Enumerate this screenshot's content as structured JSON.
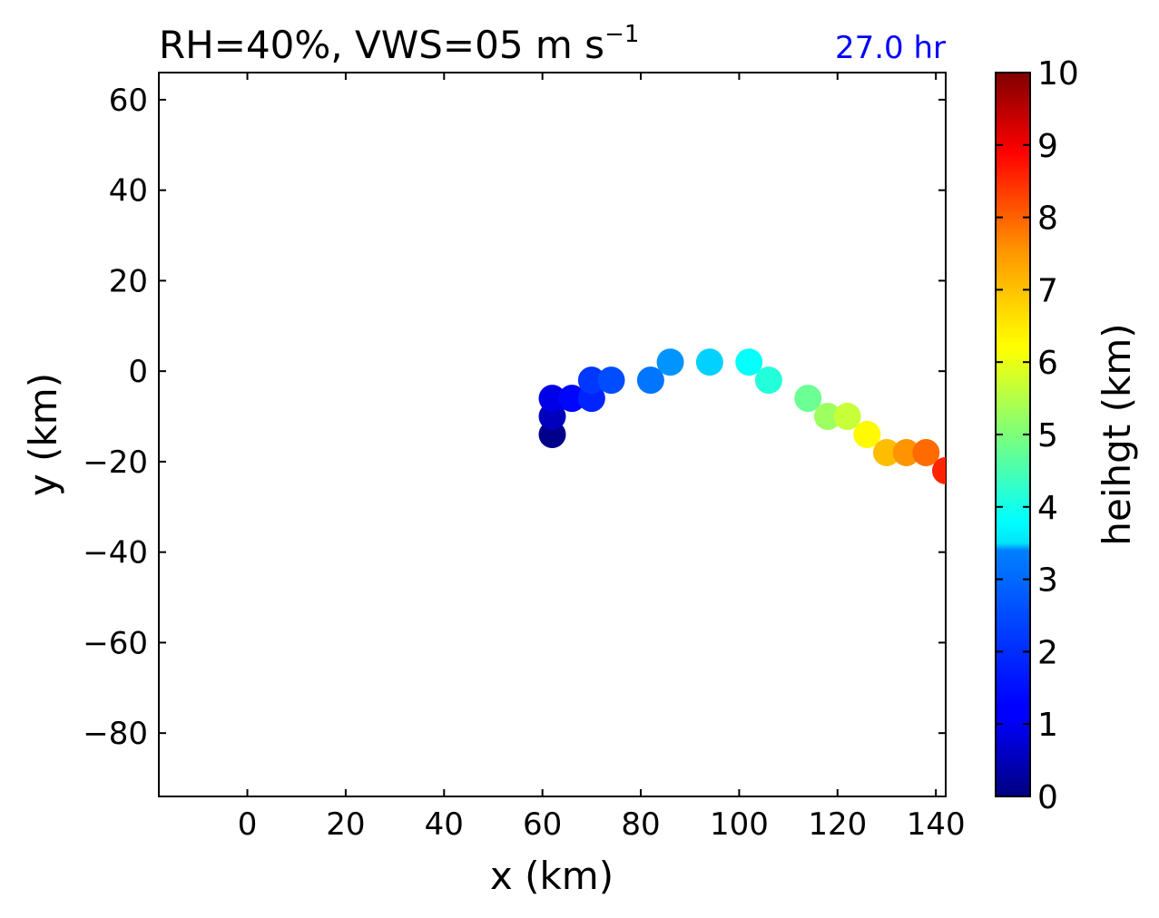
{
  "chart_data": {
    "type": "scatter",
    "title": "RH=40%, VWS=05 m s",
    "title_superscript": "−1",
    "time_label": "27.0 hr",
    "xlabel": "x (km)",
    "ylabel": "y (km)",
    "xlim": [
      -18,
      142
    ],
    "ylim": [
      -94,
      66
    ],
    "xticks": [
      0,
      20,
      40,
      60,
      80,
      100,
      120,
      140
    ],
    "yticks": [
      60,
      40,
      20,
      0,
      -20,
      -40,
      -60,
      -80
    ],
    "xtick_labels": [
      "0",
      "20",
      "40",
      "60",
      "80",
      "100",
      "120",
      "140"
    ],
    "ytick_labels": [
      "60",
      "40",
      "20",
      "0",
      "−20",
      "−40",
      "−60",
      "−80"
    ],
    "colorbar": {
      "label": "heihgt (km)",
      "range": [
        0,
        10
      ],
      "ticks": [
        0,
        1,
        2,
        3,
        4,
        5,
        6,
        7,
        8,
        9,
        10
      ],
      "tick_labels": [
        "0",
        "1",
        "2",
        "3",
        "4",
        "5",
        "6",
        "7",
        "8",
        "9",
        "10"
      ],
      "colormap": "jet"
    },
    "points": [
      {
        "x": 62,
        "y": -14,
        "height": 0.1
      },
      {
        "x": 62,
        "y": -10,
        "height": 0.6
      },
      {
        "x": 62,
        "y": -6,
        "height": 1.0
      },
      {
        "x": 66,
        "y": -6,
        "height": 1.3
      },
      {
        "x": 70,
        "y": -6,
        "height": 1.6
      },
      {
        "x": 70,
        "y": -2,
        "height": 1.8
      },
      {
        "x": 74,
        "y": -2,
        "height": 2.0
      },
      {
        "x": 82,
        "y": -2,
        "height": 2.4
      },
      {
        "x": 86,
        "y": 2,
        "height": 2.7
      },
      {
        "x": 94,
        "y": 2,
        "height": 3.3
      },
      {
        "x": 102,
        "y": 2,
        "height": 3.8
      },
      {
        "x": 106,
        "y": -2,
        "height": 4.1
      },
      {
        "x": 114,
        "y": -6,
        "height": 4.8
      },
      {
        "x": 118,
        "y": -10,
        "height": 5.3
      },
      {
        "x": 122,
        "y": -10,
        "height": 5.7
      },
      {
        "x": 126,
        "y": -14,
        "height": 6.3
      },
      {
        "x": 130,
        "y": -18,
        "height": 6.9
      },
      {
        "x": 134,
        "y": -18,
        "height": 7.3
      },
      {
        "x": 138,
        "y": -18,
        "height": 7.7
      },
      {
        "x": 142,
        "y": -22,
        "height": 8.4
      }
    ]
  }
}
